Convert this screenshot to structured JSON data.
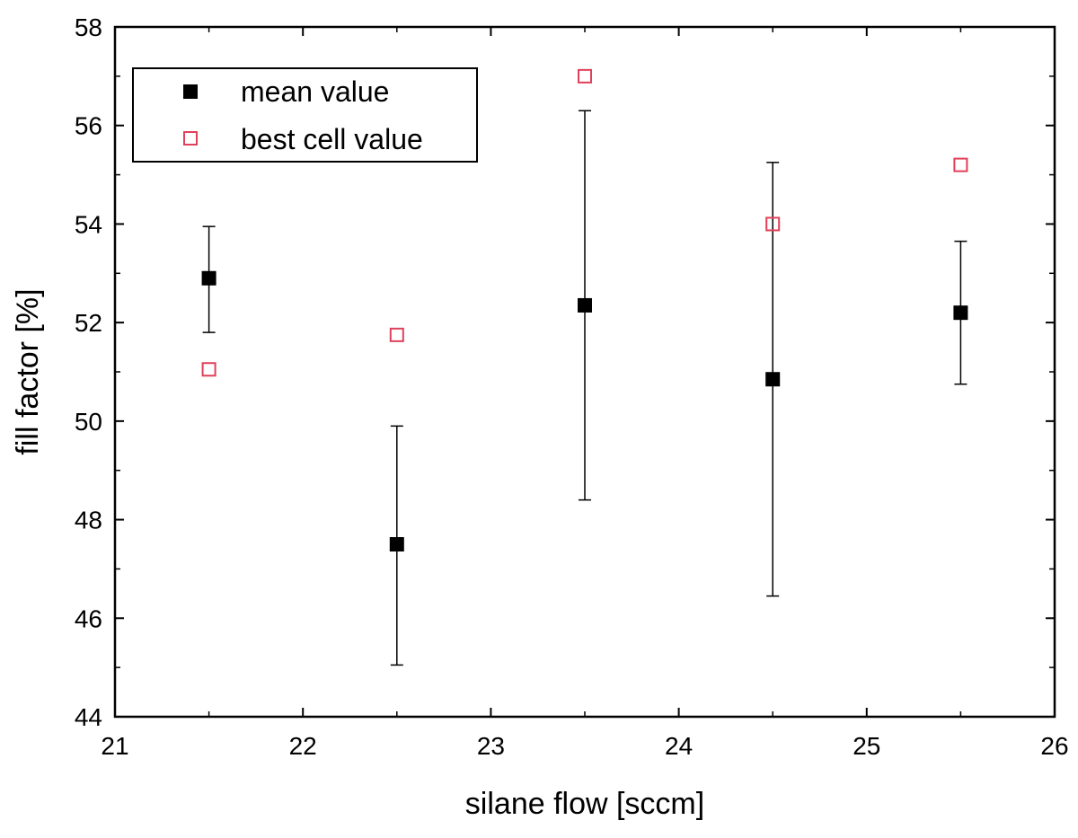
{
  "chart_data": {
    "type": "scatter",
    "xlabel": "silane flow [sccm]",
    "ylabel": "fill factor [%]",
    "xlim": [
      21,
      26
    ],
    "ylim": [
      44,
      58
    ],
    "x_ticks": [
      21,
      22,
      23,
      24,
      25,
      26
    ],
    "y_ticks": [
      44,
      46,
      48,
      50,
      52,
      54,
      56,
      58
    ],
    "x_tick_labels": [
      "21",
      "22",
      "23",
      "24",
      "25",
      "26"
    ],
    "y_tick_labels": [
      "44",
      "46",
      "48",
      "50",
      "52",
      "54",
      "56",
      "58"
    ],
    "legend_position": "top-left",
    "grid": false,
    "series": [
      {
        "name": "mean value",
        "marker": "filled-square",
        "color": "#000000",
        "points": [
          {
            "x": 21.5,
            "y": 52.9,
            "err_low": 51.8,
            "err_high": 53.95
          },
          {
            "x": 22.5,
            "y": 47.5,
            "err_low": 45.05,
            "err_high": 49.9
          },
          {
            "x": 23.5,
            "y": 52.35,
            "err_low": 48.4,
            "err_high": 56.3
          },
          {
            "x": 24.5,
            "y": 50.85,
            "err_low": 46.45,
            "err_high": 55.25
          },
          {
            "x": 25.5,
            "y": 52.2,
            "err_low": 50.75,
            "err_high": 53.65
          }
        ]
      },
      {
        "name": "best cell value",
        "marker": "open-square",
        "color": "#e0405a",
        "points": [
          {
            "x": 21.5,
            "y": 51.05
          },
          {
            "x": 22.5,
            "y": 51.75
          },
          {
            "x": 23.5,
            "y": 57.0
          },
          {
            "x": 24.5,
            "y": 54.0
          },
          {
            "x": 25.5,
            "y": 55.2
          }
        ]
      }
    ]
  }
}
